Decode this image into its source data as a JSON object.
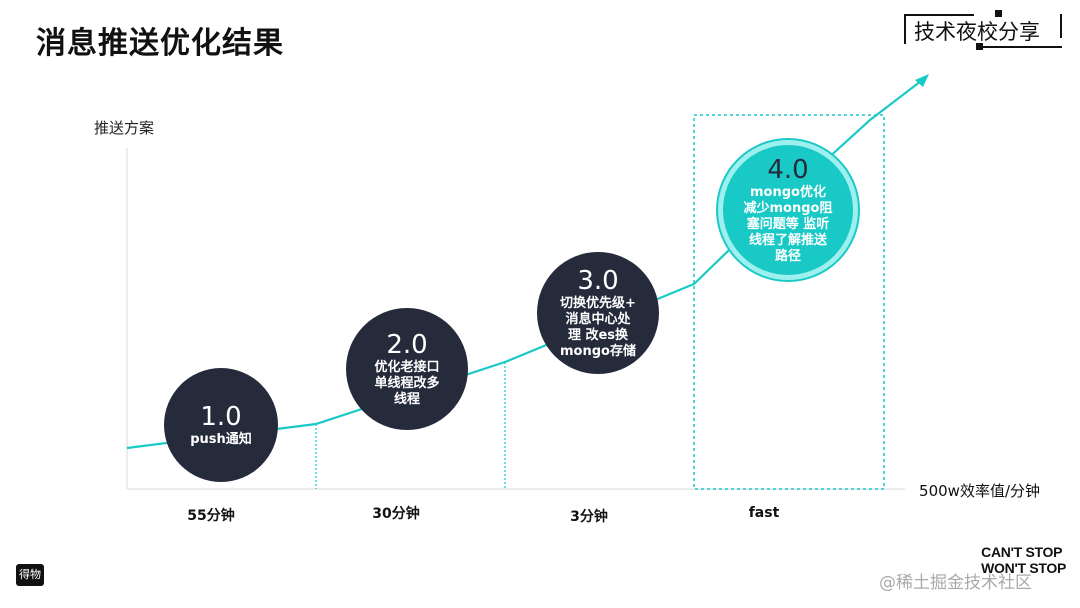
{
  "title": "消息推送优化结果",
  "brand": "技术夜校分享",
  "bottom_logo": "得物",
  "slogan": "CAN'T STOP\nWON'T STOP",
  "watermark": "@稀土掘金技术社区",
  "accent_color": "#19c9c6",
  "dark_color": "#262b3c",
  "chart_data": {
    "type": "line",
    "ylabel": "推送方案",
    "xlabel": "500w效率值/分钟",
    "categories": [
      "55分钟",
      "30分钟",
      "3分钟",
      "fast"
    ],
    "highlight_category": "fast",
    "stages": [
      {
        "version": "1.0",
        "desc": "push通知"
      },
      {
        "version": "2.0",
        "desc": "优化老接口\n单线程改多\n线程"
      },
      {
        "version": "3.0",
        "desc": "切换优先级+\n消息中心处\n理 改es换\nmongo存储"
      },
      {
        "version": "4.0",
        "desc": "mongo优化\n减少mongo阻\n塞问题等 监听\n线程了解推送\n路径"
      }
    ]
  }
}
